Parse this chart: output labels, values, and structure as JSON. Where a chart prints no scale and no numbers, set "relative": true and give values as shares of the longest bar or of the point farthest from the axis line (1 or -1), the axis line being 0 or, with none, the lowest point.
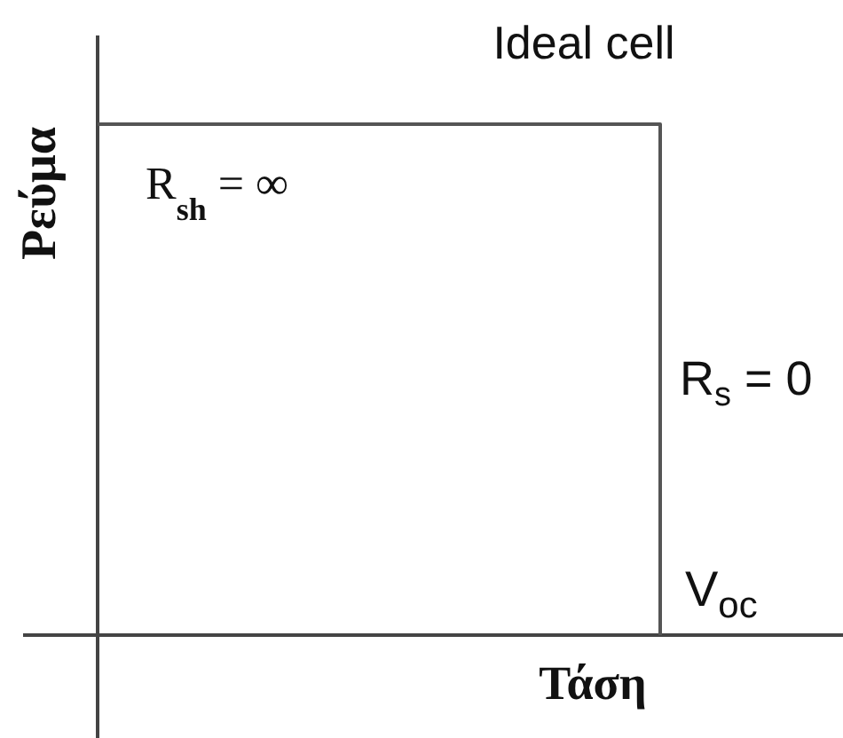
{
  "chart_data": {
    "type": "step",
    "title": "Ideal cell",
    "xlabel": "Τάση",
    "ylabel": "Ρεύμα",
    "relative": true,
    "categories": [
      null,
      null,
      null,
      null
    ],
    "series": [
      {
        "color": "#555555",
        "values": [
          1,
          1,
          1,
          0
        ]
      }
    ],
    "marker": "none",
    "line_style": "solid",
    "annotations": [
      "R$_{sh}$ = ∞",
      "R$_{s}$ = 0",
      "V$_{oc}$"
    ]
  }
}
